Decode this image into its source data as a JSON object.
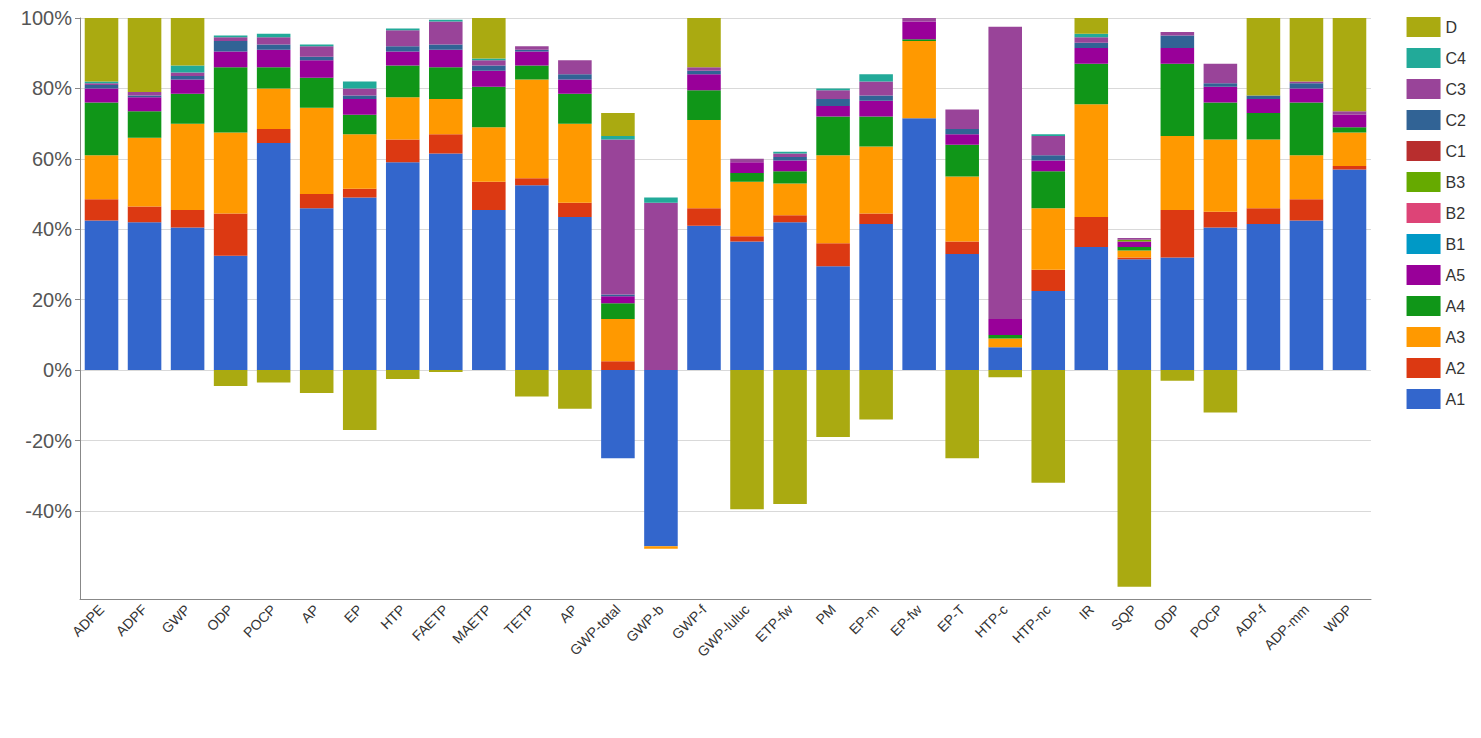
{
  "chart_data": {
    "type": "bar",
    "stacked": true,
    "grid": true,
    "legend": "right",
    "categories": [
      "ADPE",
      "ADPF",
      "GWP",
      "ODP",
      "POCP",
      "AP",
      "EP",
      "HTP",
      "FAETP",
      "MAETP",
      "TETP",
      "AP",
      "GWP-total",
      "GWP-b",
      "GWP-f",
      "GWP-luluc",
      "ETP-fw",
      "PM",
      "EP-m",
      "EP-fw",
      "EP-T",
      "HTP-c",
      "HTP-nc",
      "IR",
      "SQP",
      "ODP",
      "POCP",
      "ADP-f",
      "ADP-mm",
      "WDP"
    ],
    "ylim": [
      -65,
      100
    ],
    "yticks": [
      {
        "value": -40,
        "label": "-40%"
      },
      {
        "value": -20,
        "label": "-20%"
      },
      {
        "value": 0,
        "label": "0%"
      },
      {
        "value": 20,
        "label": "20%"
      },
      {
        "value": 40,
        "label": "40%"
      },
      {
        "value": 60,
        "label": "60%"
      },
      {
        "value": 80,
        "label": "80%"
      },
      {
        "value": 100,
        "label": "100%"
      }
    ],
    "series": [
      {
        "name": "A1",
        "color": "#3366cc",
        "values": [
          42.5,
          42,
          40.5,
          32.5,
          64.5,
          46,
          49,
          59,
          61.5,
          45.5,
          52.5,
          43.5,
          -25,
          -50,
          41,
          36.5,
          42,
          29.5,
          41.5,
          71.5,
          33,
          6.5,
          22.5,
          35,
          31.5,
          32,
          40.5,
          41.5,
          42.5,
          57
        ]
      },
      {
        "name": "A2",
        "color": "#dc3912",
        "values": [
          6,
          4.5,
          5,
          12,
          4,
          4,
          2.5,
          6.5,
          5.5,
          8,
          2,
          4,
          2.5,
          0,
          5,
          1.5,
          2,
          6.5,
          3,
          0,
          3.5,
          0,
          6,
          8.5,
          0.5,
          13.5,
          4.5,
          4.5,
          6,
          1
        ]
      },
      {
        "name": "A3",
        "color": "#ff9900",
        "values": [
          12.5,
          19.5,
          24.5,
          23,
          11.5,
          24.5,
          15.5,
          12,
          10,
          15.5,
          28,
          22.5,
          12,
          -0.7,
          25,
          15.5,
          9,
          25,
          19,
          22,
          18.5,
          2.5,
          17.5,
          32,
          2,
          21,
          20.5,
          19.5,
          12.5,
          9.5
        ]
      },
      {
        "name": "A4",
        "color": "#109618",
        "values": [
          15,
          7.5,
          8.5,
          18.5,
          6,
          8.5,
          5.5,
          9,
          9,
          11.5,
          4,
          8.5,
          4.5,
          0,
          8.5,
          2.5,
          3.5,
          11,
          8.5,
          0.5,
          9,
          1,
          10.5,
          11.5,
          1,
          20.5,
          10.5,
          7.5,
          15,
          1.5
        ]
      },
      {
        "name": "A5",
        "color": "#990099",
        "values": [
          4,
          4,
          4,
          4.5,
          5,
          5,
          4.5,
          4,
          5,
          4.5,
          4,
          4,
          2,
          0,
          4.5,
          3,
          3,
          3,
          4.5,
          5,
          3,
          4.5,
          3,
          4.5,
          1.5,
          4.5,
          4.5,
          4,
          4,
          3.5
        ]
      },
      {
        "name": "B1",
        "color": "#0099c6",
        "values": [
          0,
          0,
          0,
          0,
          0,
          0,
          0,
          0,
          0,
          0,
          0,
          0,
          0,
          0,
          0,
          0,
          0,
          0,
          0,
          0,
          0,
          0,
          0,
          0,
          0,
          0,
          0,
          0,
          0,
          0
        ]
      },
      {
        "name": "B2",
        "color": "#dd4477",
        "values": [
          0,
          0,
          0,
          0,
          0,
          0,
          0,
          0,
          0,
          0,
          0,
          0,
          0,
          0,
          0,
          0,
          0,
          0,
          0,
          0,
          0,
          0,
          0,
          0,
          0,
          0,
          0,
          0,
          0,
          0
        ]
      },
      {
        "name": "B3",
        "color": "#66aa00",
        "values": [
          0,
          0,
          0,
          0,
          0,
          0,
          0,
          0,
          0,
          0,
          0,
          0,
          0,
          0,
          0,
          0,
          0,
          0,
          0,
          0,
          0,
          0,
          0,
          0,
          0.5,
          0,
          0,
          0,
          0,
          0
        ]
      },
      {
        "name": "C1",
        "color": "#b82e2e",
        "values": [
          0,
          0,
          0,
          0,
          0,
          0,
          0,
          0,
          0,
          0,
          0,
          0,
          0,
          0,
          0,
          0,
          0,
          0,
          0,
          0,
          0,
          0,
          0,
          0,
          0,
          0,
          0,
          0,
          0,
          0
        ]
      },
      {
        "name": "C2",
        "color": "#316395",
        "values": [
          1,
          0.5,
          1,
          3,
          1.5,
          1,
          1,
          1.5,
          1.5,
          1.5,
          0.5,
          1.5,
          0.5,
          0,
          1,
          0,
          1,
          2,
          1.5,
          0,
          1.5,
          0,
          1.5,
          1.5,
          0,
          3.5,
          1,
          1,
          1.5,
          0
        ]
      },
      {
        "name": "C3",
        "color": "#994499",
        "values": [
          0.5,
          1,
          1,
          1,
          2,
          3,
          2,
          4.5,
          6.5,
          1.5,
          1,
          4,
          44,
          47.5,
          1,
          1,
          1,
          2.5,
          4,
          1,
          5.5,
          83,
          5.5,
          1.5,
          0.5,
          1,
          5.5,
          0,
          0.5,
          1
        ]
      },
      {
        "name": "C4",
        "color": "#22aa99",
        "values": [
          0.5,
          0,
          2,
          0.5,
          1,
          0.5,
          2,
          0.5,
          0.5,
          0.5,
          0,
          0,
          1,
          1.5,
          0,
          0,
          0.5,
          0.5,
          2,
          0,
          0,
          0,
          0.5,
          1,
          0,
          0,
          0,
          0,
          0,
          0
        ]
      },
      {
        "name": "D",
        "color": "#aaaa11",
        "values": [
          18,
          21,
          13.5,
          -4.5,
          -3.5,
          -6.5,
          -17,
          -2.5,
          -0.5,
          11.5,
          -7.5,
          -11,
          6.5,
          0,
          14,
          -39.5,
          -38,
          -19,
          -14,
          0,
          -25,
          -2,
          -32,
          4.5,
          -61.5,
          -3,
          -12,
          22,
          18,
          26.5
        ]
      }
    ]
  }
}
